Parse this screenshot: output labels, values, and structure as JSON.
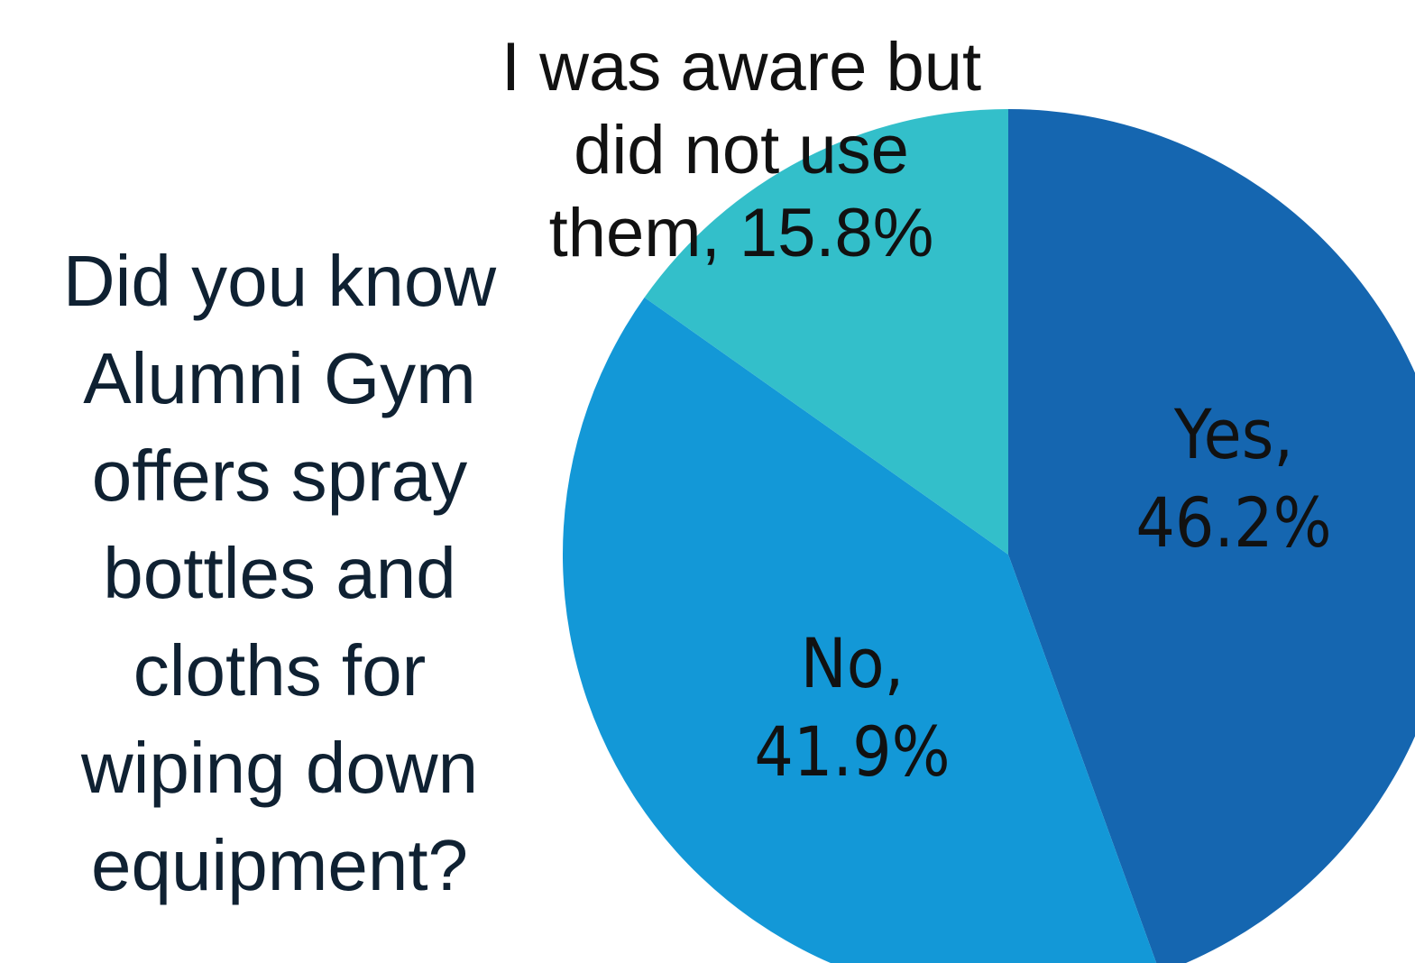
{
  "question_lines": [
    "Did you know",
    "Alumni Gym",
    "offers spray",
    "bottles and",
    "cloths for",
    "wiping down",
    "equipment?"
  ],
  "chart_data": {
    "type": "pie",
    "title": "Did you know Alumni Gym offers spray bottles and cloths for wiping down equipment?",
    "start_angle_deg": 0,
    "direction": "clockwise",
    "slices": [
      {
        "category": "Yes",
        "value": 46.2,
        "value_label": "46.2%",
        "label_lines": [
          "Yes,",
          "46.2%"
        ],
        "color": "#1566b0"
      },
      {
        "category": "No",
        "value": 41.9,
        "value_label": "41.9%",
        "label_lines": [
          "No,",
          "41.9%"
        ],
        "color": "#1398d7"
      },
      {
        "category": "I was aware but did not use them",
        "value": 15.8,
        "value_label": "15.8%",
        "label_lines": [
          "I was aware but",
          "did not use",
          "them, 15.8%"
        ],
        "color": "#33bfca"
      }
    ]
  }
}
